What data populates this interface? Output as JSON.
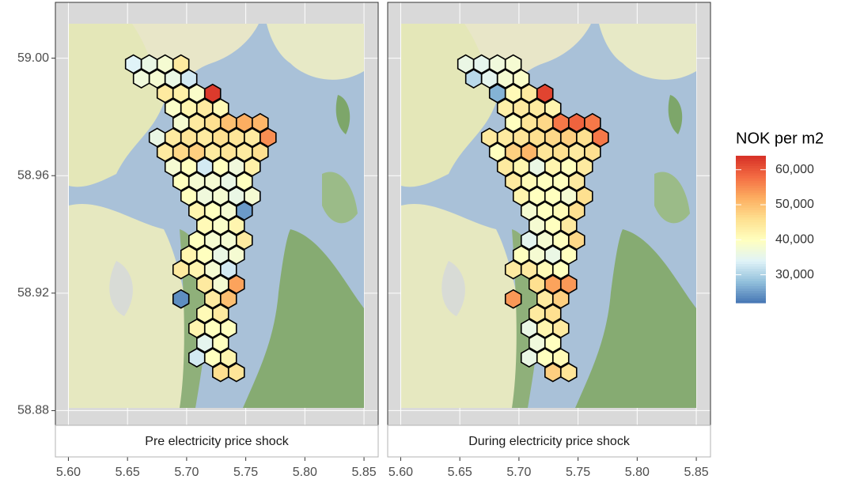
{
  "chart_data": [
    {
      "type": "hexbin",
      "title": "Pre electricity price shock",
      "xlim": [
        5.589,
        5.862
      ],
      "ylim": [
        58.875,
        59.019
      ],
      "xticks": [
        {
          "value": 5.6,
          "label": "5.60"
        },
        5.65,
        {
          "value": 5.7,
          "label": "5.70"
        },
        5.75,
        {
          "value": 5.8,
          "label": "5.80"
        },
        5.85
      ],
      "yticks": [
        {
          "value": 59,
          "label": "59.00"
        },
        58.96,
        58.92,
        58.88
      ],
      "grid": true,
      "x": [
        5.655,
        5.6684,
        5.6818,
        5.6952,
        5.6617,
        5.6751,
        5.6885,
        5.7019,
        5.6818,
        5.6952,
        5.7086,
        5.722,
        5.6885,
        5.7019,
        5.7153,
        5.7287,
        5.6952,
        5.7086,
        5.722,
        5.7354,
        5.7488,
        5.7622,
        5.6751,
        5.6885,
        5.7019,
        5.7153,
        5.7287,
        5.7421,
        5.7555,
        5.7689,
        5.6818,
        5.6952,
        5.7086,
        5.722,
        5.7354,
        5.7488,
        5.7622,
        5.6885,
        5.7019,
        5.7153,
        5.7287,
        5.7421,
        5.7555,
        5.6952,
        5.7086,
        5.722,
        5.7354,
        5.7488,
        5.7019,
        5.7153,
        5.7287,
        5.7421,
        5.7555,
        5.7086,
        5.722,
        5.7354,
        5.7488,
        5.7153,
        5.7287,
        5.7421,
        5.7086,
        5.722,
        5.7354,
        5.7488,
        5.7019,
        5.7153,
        5.7287,
        5.7421,
        5.6952,
        5.7086,
        5.722,
        5.7354,
        5.7153,
        5.7287,
        5.7421,
        5.6952,
        5.722,
        5.7354,
        5.7153,
        5.7287,
        5.7086,
        5.722,
        5.7354,
        5.7153,
        5.7287,
        5.7086,
        5.722,
        5.7354,
        5.7287,
        5.7421
      ],
      "y": [
        58.998,
        58.998,
        58.998,
        58.998,
        58.993,
        58.993,
        58.993,
        58.993,
        58.988,
        58.988,
        58.988,
        58.988,
        58.983,
        58.983,
        58.983,
        58.983,
        58.978,
        58.978,
        58.978,
        58.978,
        58.978,
        58.978,
        58.973,
        58.973,
        58.973,
        58.973,
        58.973,
        58.973,
        58.973,
        58.973,
        58.968,
        58.968,
        58.968,
        58.968,
        58.968,
        58.968,
        58.968,
        58.963,
        58.963,
        58.963,
        58.963,
        58.963,
        58.963,
        58.958,
        58.958,
        58.958,
        58.958,
        58.958,
        58.953,
        58.953,
        58.953,
        58.953,
        58.953,
        58.948,
        58.948,
        58.948,
        58.948,
        58.943,
        58.943,
        58.943,
        58.938,
        58.938,
        58.938,
        58.938,
        58.933,
        58.933,
        58.933,
        58.933,
        58.928,
        58.928,
        58.928,
        58.928,
        58.923,
        58.923,
        58.923,
        58.918,
        58.918,
        58.918,
        58.913,
        58.913,
        58.908,
        58.908,
        58.908,
        58.903,
        58.903,
        58.898,
        58.898,
        58.898,
        58.893,
        58.893
      ],
      "values": [
        34000,
        36000,
        38000,
        44000,
        37000,
        38000,
        36000,
        33000,
        44000,
        43000,
        39000,
        63000,
        39000,
        42000,
        44000,
        41000,
        38000,
        44000,
        46000,
        50000,
        52000,
        51000,
        36000,
        44000,
        45000,
        44000,
        46000,
        45000,
        44000,
        55000,
        44000,
        47000,
        48000,
        44000,
        45000,
        44000,
        46000,
        38000,
        40000,
        33000,
        40000,
        37000,
        43000,
        40000,
        38000,
        38000,
        36000,
        40000,
        40000,
        37000,
        38000,
        36000,
        38000,
        42000,
        40000,
        38000,
        25000,
        41000,
        39000,
        42000,
        40000,
        38000,
        38000,
        44000,
        42000,
        40000,
        36000,
        38000,
        44000,
        42000,
        38000,
        33000,
        44000,
        38000,
        53000,
        24000,
        44000,
        50000,
        41000,
        44000,
        42000,
        40000,
        40000,
        35000,
        40000,
        33000,
        40000,
        42000,
        46000,
        45000
      ]
    },
    {
      "type": "hexbin",
      "title": "During electricity price shock",
      "xlim": [
        5.589,
        5.862
      ],
      "ylim": [
        58.875,
        59.019
      ],
      "xticks": [
        {
          "value": 5.6,
          "label": "5.60"
        },
        5.65,
        {
          "value": 5.7,
          "label": "5.70"
        },
        5.75,
        {
          "value": 5.8,
          "label": "5.80"
        },
        5.85
      ],
      "yticks": [
        {
          "value": 59,
          "label": "59.00"
        },
        58.96,
        58.92,
        58.88
      ],
      "grid": true,
      "x": [
        5.655,
        5.6684,
        5.6818,
        5.6952,
        5.6617,
        5.6751,
        5.6885,
        5.7019,
        5.6818,
        5.6952,
        5.7086,
        5.722,
        5.6885,
        5.7019,
        5.7153,
        5.7287,
        5.6952,
        5.7086,
        5.722,
        5.7354,
        5.7488,
        5.7622,
        5.6751,
        5.6885,
        5.7019,
        5.7153,
        5.7287,
        5.7421,
        5.7555,
        5.7689,
        5.6818,
        5.6952,
        5.7086,
        5.722,
        5.7354,
        5.7488,
        5.7622,
        5.6885,
        5.7019,
        5.7153,
        5.7287,
        5.7421,
        5.7555,
        5.6952,
        5.7086,
        5.722,
        5.7354,
        5.7488,
        5.7019,
        5.7153,
        5.7287,
        5.7421,
        5.7555,
        5.7086,
        5.722,
        5.7354,
        5.7488,
        5.7153,
        5.7287,
        5.7421,
        5.7086,
        5.722,
        5.7354,
        5.7488,
        5.7019,
        5.7153,
        5.7287,
        5.7421,
        5.6952,
        5.7086,
        5.722,
        5.7354,
        5.7153,
        5.7287,
        5.7421,
        5.6952,
        5.722,
        5.7354,
        5.7153,
        5.7287,
        5.7086,
        5.722,
        5.7354,
        5.7153,
        5.7287,
        5.7086,
        5.722,
        5.7354,
        5.7287,
        5.7421
      ],
      "y": [
        58.998,
        58.998,
        58.998,
        58.998,
        58.993,
        58.993,
        58.993,
        58.993,
        58.988,
        58.988,
        58.988,
        58.988,
        58.983,
        58.983,
        58.983,
        58.983,
        58.978,
        58.978,
        58.978,
        58.978,
        58.978,
        58.978,
        58.973,
        58.973,
        58.973,
        58.973,
        58.973,
        58.973,
        58.973,
        58.973,
        58.968,
        58.968,
        58.968,
        58.968,
        58.968,
        58.968,
        58.968,
        58.963,
        58.963,
        58.963,
        58.963,
        58.963,
        58.963,
        58.958,
        58.958,
        58.958,
        58.958,
        58.958,
        58.953,
        58.953,
        58.953,
        58.953,
        58.953,
        58.948,
        58.948,
        58.948,
        58.948,
        58.943,
        58.943,
        58.943,
        58.938,
        58.938,
        58.938,
        58.938,
        58.933,
        58.933,
        58.933,
        58.933,
        58.928,
        58.928,
        58.928,
        58.928,
        58.923,
        58.923,
        58.923,
        58.918,
        58.918,
        58.918,
        58.913,
        58.913,
        58.908,
        58.908,
        58.908,
        58.903,
        58.903,
        58.898,
        58.898,
        58.898,
        58.893,
        58.893
      ],
      "values": [
        36000,
        35000,
        37000,
        38000,
        31000,
        35000,
        38000,
        39000,
        27000,
        41000,
        44000,
        62000,
        43000,
        44000,
        44000,
        42000,
        40000,
        45000,
        47000,
        57000,
        59000,
        57000,
        44000,
        44000,
        45000,
        46000,
        47000,
        48000,
        46000,
        57000,
        40000,
        48000,
        51000,
        45000,
        46000,
        44000,
        46000,
        44000,
        42000,
        36000,
        42000,
        40000,
        44000,
        44000,
        41000,
        40000,
        40000,
        44000,
        42000,
        40000,
        40000,
        38000,
        46000,
        38000,
        40000,
        41000,
        46000,
        38000,
        40000,
        44000,
        35000,
        38000,
        40000,
        47000,
        40000,
        38000,
        36000,
        40000,
        44000,
        44000,
        41000,
        40000,
        46000,
        53000,
        54000,
        54000,
        44000,
        48000,
        44000,
        46000,
        36000,
        42000,
        44000,
        37000,
        40000,
        36000,
        40000,
        41000,
        48000,
        45000
      ]
    }
  ],
  "legend": {
    "title": "NOK per m2",
    "range": [
      22000,
      64000
    ],
    "ticks": [
      {
        "value": 60000,
        "label": "60,000"
      },
      {
        "value": 50000,
        "label": "50,000"
      },
      {
        "value": 40000,
        "label": "40,000"
      },
      {
        "value": 30000,
        "label": "30,000"
      }
    ],
    "colors": [
      "#4575b4",
      "#91bfdb",
      "#e0f3f8",
      "#ffffbf",
      "#fee090",
      "#fdae61",
      "#f46d43",
      "#d73027"
    ]
  }
}
